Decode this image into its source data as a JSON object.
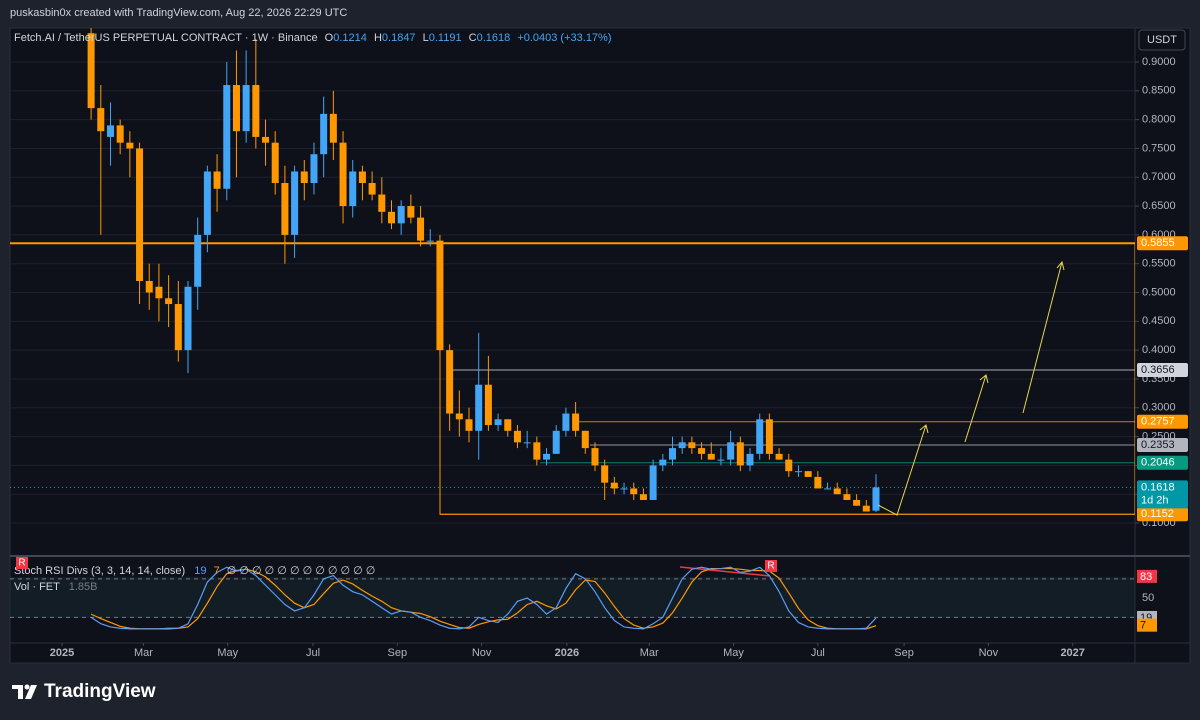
{
  "header": {
    "caption": "puskasbin0x created with TradingView.com, Aug 22, 2026 22:29 UTC"
  },
  "footer": {
    "brand": "TradingView"
  },
  "currency_button": "USDT",
  "chart_data": {
    "type": "candlestick",
    "title": "Fetch.AI / TetherUS PERPETUAL CONTRACT · 1W · Binance",
    "ohlc_labels": [
      "O",
      "H",
      "L",
      "C"
    ],
    "change": "+0.0403 (+33.17%)",
    "up_color": "#42a5f5",
    "down_color": "#ff9800",
    "x": [
      3,
      4,
      5,
      6,
      7,
      8,
      9,
      10,
      11,
      12,
      13,
      14,
      15,
      16,
      17,
      18,
      19,
      20,
      21,
      22,
      23,
      24,
      25,
      26,
      27,
      28,
      29,
      30,
      31,
      32,
      33,
      34,
      35,
      36,
      37,
      38,
      39,
      40,
      41,
      42,
      43,
      44,
      45,
      46,
      47,
      48,
      49,
      50,
      51,
      52,
      53,
      54,
      55,
      56,
      57,
      58,
      59,
      60,
      61,
      62,
      63,
      64,
      65,
      66,
      67,
      68,
      69,
      70,
      71,
      72,
      73,
      74,
      75,
      76,
      77,
      78,
      79,
      80,
      81,
      82,
      83,
      84
    ],
    "open": [
      0.95,
      0.82,
      0.77,
      0.79,
      0.76,
      0.75,
      0.52,
      0.51,
      0.49,
      0.48,
      0.4,
      0.51,
      0.6,
      0.71,
      0.68,
      0.86,
      0.78,
      0.86,
      0.77,
      0.76,
      0.69,
      0.6,
      0.71,
      0.69,
      0.74,
      0.81,
      0.76,
      0.65,
      0.71,
      0.69,
      0.67,
      0.64,
      0.62,
      0.65,
      0.63,
      0.59,
      0.59,
      0.4,
      0.29,
      0.28,
      0.26,
      0.34,
      0.27,
      0.28,
      0.26,
      0.24,
      0.24,
      0.21,
      0.22,
      0.26,
      0.29,
      0.26,
      0.23,
      0.2,
      0.17,
      0.16,
      0.16,
      0.15,
      0.14,
      0.2,
      0.21,
      0.23,
      0.24,
      0.23,
      0.22,
      0.21,
      0.21,
      0.24,
      0.2,
      0.22,
      0.28,
      0.22,
      0.21,
      0.19,
      0.19,
      0.18,
      0.16,
      0.16,
      0.15,
      0.14,
      0.13,
      0.1214
    ],
    "high": [
      1.0,
      0.86,
      0.83,
      0.8,
      0.78,
      0.76,
      0.55,
      0.55,
      0.53,
      0.52,
      0.52,
      0.63,
      0.72,
      0.74,
      0.9,
      0.92,
      0.92,
      0.94,
      0.8,
      0.78,
      0.72,
      0.72,
      0.73,
      0.76,
      0.84,
      0.85,
      0.78,
      0.73,
      0.72,
      0.71,
      0.7,
      0.66,
      0.66,
      0.67,
      0.65,
      0.61,
      0.6,
      0.41,
      0.33,
      0.3,
      0.43,
      0.39,
      0.29,
      0.28,
      0.27,
      0.26,
      0.25,
      0.23,
      0.27,
      0.3,
      0.31,
      0.26,
      0.24,
      0.21,
      0.18,
      0.17,
      0.17,
      0.16,
      0.21,
      0.22,
      0.25,
      0.25,
      0.25,
      0.24,
      0.24,
      0.23,
      0.26,
      0.25,
      0.23,
      0.29,
      0.29,
      0.23,
      0.22,
      0.2,
      0.19,
      0.19,
      0.17,
      0.17,
      0.16,
      0.15,
      0.14,
      0.1847
    ],
    "low": [
      0.8,
      0.6,
      0.72,
      0.74,
      0.7,
      0.48,
      0.47,
      0.45,
      0.44,
      0.38,
      0.36,
      0.47,
      0.57,
      0.64,
      0.66,
      0.7,
      0.76,
      0.75,
      0.72,
      0.67,
      0.55,
      0.56,
      0.66,
      0.67,
      0.7,
      0.73,
      0.62,
      0.63,
      0.66,
      0.66,
      0.62,
      0.61,
      0.6,
      0.62,
      0.58,
      0.58,
      0.39,
      0.26,
      0.25,
      0.24,
      0.21,
      0.26,
      0.26,
      0.25,
      0.23,
      0.23,
      0.2,
      0.2,
      0.22,
      0.25,
      0.25,
      0.22,
      0.19,
      0.14,
      0.15,
      0.15,
      0.14,
      0.14,
      0.14,
      0.19,
      0.2,
      0.22,
      0.22,
      0.21,
      0.21,
      0.2,
      0.2,
      0.19,
      0.19,
      0.21,
      0.21,
      0.21,
      0.18,
      0.18,
      0.18,
      0.16,
      0.16,
      0.15,
      0.14,
      0.13,
      0.12,
      0.1191
    ],
    "close": [
      0.82,
      0.78,
      0.79,
      0.76,
      0.75,
      0.52,
      0.5,
      0.49,
      0.48,
      0.4,
      0.51,
      0.6,
      0.71,
      0.68,
      0.86,
      0.78,
      0.86,
      0.77,
      0.76,
      0.69,
      0.6,
      0.71,
      0.69,
      0.74,
      0.81,
      0.76,
      0.65,
      0.71,
      0.69,
      0.67,
      0.64,
      0.62,
      0.65,
      0.63,
      0.59,
      0.59,
      0.4,
      0.29,
      0.28,
      0.26,
      0.34,
      0.27,
      0.28,
      0.26,
      0.24,
      0.24,
      0.21,
      0.22,
      0.26,
      0.29,
      0.26,
      0.23,
      0.2,
      0.17,
      0.16,
      0.16,
      0.15,
      0.14,
      0.2,
      0.21,
      0.23,
      0.24,
      0.23,
      0.22,
      0.21,
      0.21,
      0.24,
      0.2,
      0.22,
      0.28,
      0.22,
      0.21,
      0.19,
      0.19,
      0.18,
      0.16,
      0.16,
      0.15,
      0.14,
      0.13,
      0.12,
      0.1618
    ],
    "countdown": "1d 2h",
    "xlim": [
      -5.37,
      110.73
    ],
    "xticks": [
      {
        "value": 0,
        "label": "2025"
      },
      {
        "value": 8.4,
        "label": "Mar"
      },
      {
        "value": 17.1,
        "label": "May"
      },
      {
        "value": 25.9,
        "label": "Jul"
      },
      {
        "value": 34.6,
        "label": "Sep"
      },
      {
        "value": 43.3,
        "label": "Nov"
      },
      {
        "value": 52.1,
        "label": "2026"
      },
      {
        "value": 60.6,
        "label": "Mar"
      },
      {
        "value": 69.3,
        "label": "May"
      },
      {
        "value": 78.0,
        "label": "Jul"
      },
      {
        "value": 86.9,
        "label": "Sep"
      },
      {
        "value": 95.6,
        "label": "Nov"
      },
      {
        "value": 104.3,
        "label": "2027"
      }
    ],
    "ylim": [
      0.0445,
      0.959
    ],
    "yticks": [
      {
        "value": 0.1,
        "label": "0.1000"
      },
      {
        "value": 0.15,
        "label": "0.1500"
      },
      {
        "value": 0.2,
        "label": "0.2000"
      },
      {
        "value": 0.25,
        "label": "0.2500"
      },
      {
        "value": 0.3,
        "label": "0.3000"
      },
      {
        "value": 0.35,
        "label": "0.3500"
      },
      {
        "value": 0.4,
        "label": "0.4000"
      },
      {
        "value": 0.45,
        "label": "0.4500"
      },
      {
        "value": 0.5,
        "label": "0.5000"
      },
      {
        "value": 0.55,
        "label": "0.5500"
      },
      {
        "value": 0.6,
        "label": "0.6000"
      },
      {
        "value": 0.65,
        "label": "0.6500"
      },
      {
        "value": 0.7,
        "label": "0.7000"
      },
      {
        "value": 0.75,
        "label": "0.7500"
      },
      {
        "value": 0.8,
        "label": "0.8000"
      },
      {
        "value": 0.85,
        "label": "0.8500"
      },
      {
        "value": 0.9,
        "label": "0.9000"
      }
    ],
    "levels": [
      {
        "value": 0.5855,
        "color": "#ff9800"
      },
      {
        "value": 0.3656,
        "color": "#d1d4dc"
      },
      {
        "value": 0.2757,
        "color": "#ff9800"
      },
      {
        "value": 0.2353,
        "color": "#b2b5be"
      },
      {
        "value": 0.2046,
        "color": "#089981"
      },
      {
        "value": 0.1152,
        "color": "#ff9800"
      }
    ],
    "indicator": {
      "title": "Stoch RSI Divs (3, 3, 14, 14, close)",
      "na_values": "∅ ∅ ∅ ∅ ∅ ∅ ∅ ∅ ∅ ∅ ∅ ∅",
      "volume_title": "Vol · FET",
      "volume_value": "1.85B",
      "divergence_marker": "R",
      "divergence_value": 83,
      "k_color": "#5b9cf6",
      "d_color": "#ff9800",
      "ylim": [
        -20,
        114
      ],
      "yticks": [
        50
      ],
      "bands": [
        80,
        20
      ],
      "k": [
        20,
        10,
        5,
        3,
        2,
        2,
        2,
        2,
        3,
        3,
        10,
        40,
        75,
        90,
        98,
        92,
        95,
        85,
        70,
        55,
        40,
        30,
        35,
        55,
        80,
        85,
        70,
        60,
        55,
        45,
        35,
        25,
        30,
        28,
        20,
        15,
        8,
        3,
        2,
        5,
        20,
        15,
        12,
        25,
        45,
        50,
        40,
        25,
        35,
        65,
        88,
        80,
        60,
        35,
        15,
        5,
        3,
        2,
        10,
        20,
        50,
        80,
        95,
        98,
        95,
        96,
        98,
        90,
        92,
        98,
        85,
        60,
        30,
        12,
        5,
        3,
        2,
        2,
        2,
        2,
        3,
        19
      ],
      "d": [
        25,
        18,
        12,
        6,
        3,
        2,
        2,
        2,
        2,
        3,
        5,
        18,
        42,
        68,
        88,
        93,
        95,
        91,
        83,
        70,
        55,
        42,
        35,
        40,
        57,
        73,
        78,
        72,
        62,
        53,
        45,
        35,
        30,
        28,
        26,
        21,
        14,
        9,
        4,
        3,
        9,
        13,
        16,
        17,
        27,
        40,
        45,
        38,
        33,
        42,
        63,
        78,
        76,
        58,
        37,
        18,
        8,
        3,
        5,
        11,
        27,
        50,
        75,
        91,
        96,
        96,
        96,
        95,
        93,
        93,
        92,
        81,
        58,
        34,
        16,
        7,
        3,
        2,
        2,
        2,
        2,
        7
      ]
    }
  }
}
